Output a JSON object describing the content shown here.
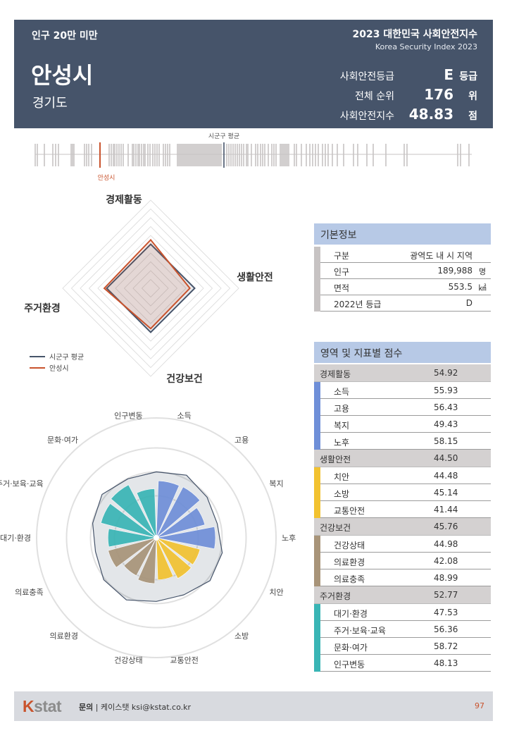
{
  "header": {
    "category": "인구 20만 미만",
    "title": "2023 대한민국 사회안전지수",
    "subtitle": "Korea Security Index 2023",
    "city": "안성시",
    "province": "경기도",
    "stats": [
      {
        "label": "사회안전등급",
        "value": "E",
        "unit": "등급"
      },
      {
        "label": "전체 순위",
        "value": "176",
        "unit": "위"
      },
      {
        "label": "사회안전지수",
        "value": "48.83",
        "unit": "점"
      }
    ]
  },
  "strip": {
    "avg_label": "시군구 평균",
    "city_label": "안성시",
    "colors": {
      "tick": "#c7c3c3",
      "avg": "#46546a",
      "city": "#c9532d"
    }
  },
  "radar": {
    "axes": [
      "경제활동",
      "생활안전",
      "건강보건",
      "주거환경"
    ],
    "legend": [
      {
        "name": "시군구 평균",
        "color": "#46546a"
      },
      {
        "name": "안성시",
        "color": "#c9532d"
      }
    ],
    "max": 100,
    "avg_values": [
      50.0,
      50.0,
      50.0,
      50.0
    ],
    "city_values": [
      54.92,
      44.5,
      45.76,
      52.77
    ]
  },
  "chart_data": {
    "type": "bar",
    "title": "",
    "categories": [
      "소득",
      "고용",
      "복지",
      "노후",
      "치안",
      "소방",
      "교통안전",
      "건강상태",
      "의료환경",
      "의료충족",
      "대기·환경",
      "주거·보육·교육",
      "문화·여가",
      "인구변동"
    ],
    "values": [
      55.93,
      56.43,
      49.43,
      58.15,
      44.48,
      45.14,
      41.44,
      44.98,
      42.08,
      48.99,
      47.53,
      56.36,
      58.72,
      48.13
    ],
    "colors": [
      "#6f8fd8",
      "#6f8fd8",
      "#6f8fd8",
      "#6f8fd8",
      "#f2c230",
      "#f2c230",
      "#f2c230",
      "#a89479",
      "#a89479",
      "#a89479",
      "#39b5b5",
      "#39b5b5",
      "#39b5b5",
      "#39b5b5"
    ],
    "polar": true,
    "ylim": [
      0,
      100
    ]
  },
  "info": {
    "title": "기본정보",
    "rows": [
      {
        "key": "구분",
        "value": "광역도 내 시 지역",
        "unit": ""
      },
      {
        "key": "인구",
        "value": "189,988",
        "unit": "명"
      },
      {
        "key": "면적",
        "value": "553.5",
        "unit": "㎢"
      },
      {
        "key": "2022년 등급",
        "value": "D",
        "unit": ""
      }
    ]
  },
  "scores": {
    "title": "영역 및 지표별 점수",
    "domains": [
      {
        "name": "경제활동",
        "score": "54.92",
        "color": "#6f8fd8",
        "items": [
          {
            "name": "소득",
            "score": "55.93"
          },
          {
            "name": "고용",
            "score": "56.43"
          },
          {
            "name": "복지",
            "score": "49.43"
          },
          {
            "name": "노후",
            "score": "58.15"
          }
        ]
      },
      {
        "name": "생활안전",
        "score": "44.50",
        "color": "#f2c230",
        "items": [
          {
            "name": "치안",
            "score": "44.48"
          },
          {
            "name": "소방",
            "score": "45.14"
          },
          {
            "name": "교통안전",
            "score": "41.44"
          }
        ]
      },
      {
        "name": "건강보건",
        "score": "45.76",
        "color": "#a89479",
        "items": [
          {
            "name": "건강상태",
            "score": "44.98"
          },
          {
            "name": "의료환경",
            "score": "42.08"
          },
          {
            "name": "의료충족",
            "score": "48.99"
          }
        ]
      },
      {
        "name": "주거환경",
        "score": "52.77",
        "color": "#39b5b5",
        "items": [
          {
            "name": "대기·환경",
            "score": "47.53"
          },
          {
            "name": "주거·보육·교육",
            "score": "56.36"
          },
          {
            "name": "문화·여가",
            "score": "58.72"
          },
          {
            "name": "인구변동",
            "score": "48.13"
          }
        ]
      }
    ]
  },
  "footer": {
    "logo_k": "K",
    "logo_rest": "stat",
    "contact_label": "문의",
    "contact_text": "케이스탯 ksi@kstat.co.kr",
    "page": "97"
  }
}
